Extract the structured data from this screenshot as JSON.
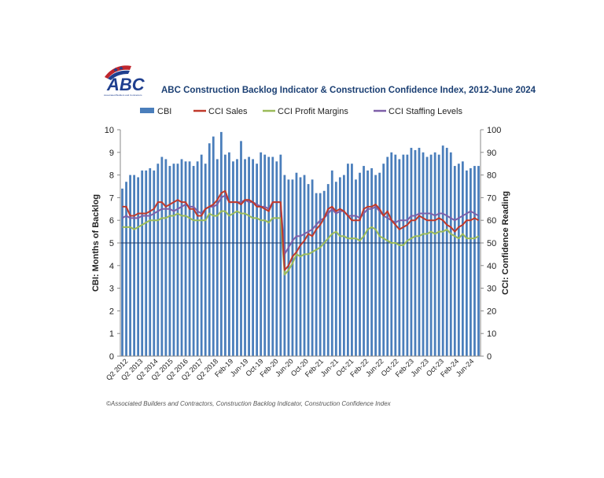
{
  "logo": {
    "text": "ABC",
    "subtext": "Associated Builders and Contractors",
    "icon": "abc-logo-flag"
  },
  "title": "ABC Construction Backlog Indicator & Construction Confidence Index, 2012-June 2024",
  "footer": "©Associated Builders and Contractors, Construction Backlog Indicator, Construction Confidence Index",
  "colors": {
    "cbi": "#4a7ebb",
    "sales": "#c0392b",
    "profit": "#9bbb59",
    "staffing": "#7e5fa8"
  },
  "chart_data": {
    "type": "bar",
    "x_tick_labels": [
      "Q2 2012",
      "Q2 2013",
      "Q2 2014",
      "Q2 2015",
      "Q2 2016",
      "Q2 2017",
      "Q2 2018",
      "Feb-19",
      "Jun-19",
      "Oct-19",
      "Feb-20",
      "Jun-20",
      "Oct-20",
      "Feb-21",
      "Jun-21",
      "Oct-21",
      "Feb-22",
      "Jun-22",
      "Oct-22",
      "Feb-23",
      "Jun-23",
      "Oct-23",
      "Feb-24",
      "Jun-24"
    ],
    "ylabel": "CBI: Months of Backlog",
    "y2label": "CCI: Confidence Reading",
    "ylim": [
      0,
      10
    ],
    "y2lim": [
      0,
      100
    ],
    "y_ticks": [
      "0",
      "1",
      "2",
      "3",
      "4",
      "5",
      "6",
      "7",
      "8",
      "9",
      "10"
    ],
    "y2_ticks": [
      "0",
      "10",
      "20",
      "30",
      "40",
      "50",
      "60",
      "70",
      "80",
      "90",
      "100"
    ],
    "reference_line_y2": 50,
    "series": [
      {
        "name": "CBI",
        "kind": "bar",
        "axis": "left",
        "values": [
          7.4,
          7.7,
          8.0,
          8.0,
          7.9,
          8.2,
          8.2,
          8.3,
          8.2,
          8.5,
          8.8,
          8.7,
          8.4,
          8.5,
          8.5,
          8.7,
          8.6,
          8.6,
          8.4,
          8.6,
          8.9,
          8.5,
          9.4,
          9.7,
          8.7,
          9.9,
          8.9,
          9.0,
          8.6,
          8.7,
          9.5,
          8.7,
          8.8,
          8.7,
          8.5,
          9.0,
          8.9,
          8.8,
          8.8,
          8.6,
          8.9,
          8.0,
          7.8,
          7.8,
          8.1,
          7.9,
          8.0,
          7.6,
          7.8,
          7.2,
          7.2,
          7.3,
          7.6,
          8.2,
          7.7,
          7.9,
          8.0,
          8.5,
          8.5,
          7.8,
          8.1,
          8.4,
          8.2,
          8.3,
          8.0,
          8.1,
          8.5,
          8.8,
          9.0,
          8.9,
          8.7,
          8.9,
          8.9,
          9.2,
          9.1,
          9.2,
          9.0,
          8.8,
          8.9,
          9.0,
          8.9,
          9.3,
          9.2,
          9.0,
          8.4,
          8.5,
          8.6,
          8.2,
          8.3,
          8.4,
          8.4
        ]
      },
      {
        "name": "CCI Sales",
        "kind": "line",
        "axis": "right",
        "values": [
          66,
          66,
          62,
          62,
          63,
          63,
          63,
          64,
          65,
          68,
          68,
          66,
          67,
          68,
          69,
          68,
          68,
          65,
          65,
          62,
          62,
          65,
          66,
          67,
          69,
          72,
          73,
          68,
          68,
          68,
          67,
          69,
          69,
          68,
          66,
          66,
          65,
          64,
          68,
          68,
          68,
          38,
          40,
          44,
          46,
          49,
          51,
          54,
          53,
          56,
          58,
          61,
          65,
          66,
          64,
          65,
          64,
          62,
          60,
          60,
          60,
          65,
          66,
          66,
          67,
          65,
          62,
          64,
          60,
          58,
          56,
          57,
          58,
          60,
          60,
          62,
          61,
          60,
          60,
          60,
          61,
          60,
          58,
          57,
          55,
          57,
          58,
          60,
          60,
          61,
          60
        ]
      },
      {
        "name": "CCI Profit Margins",
        "kind": "line",
        "axis": "right",
        "values": [
          57,
          57,
          57,
          56,
          57,
          58,
          59,
          60,
          60,
          60,
          61,
          61,
          62,
          62,
          63,
          62,
          62,
          61,
          60,
          60,
          60,
          60,
          63,
          62,
          62,
          64,
          64,
          62,
          63,
          64,
          63,
          63,
          62,
          61,
          61,
          60,
          60,
          59,
          61,
          61,
          61,
          36,
          38,
          41,
          45,
          44,
          45,
          45,
          46,
          47,
          48,
          50,
          52,
          54,
          55,
          53,
          53,
          52,
          52,
          52,
          51,
          53,
          56,
          57,
          56,
          53,
          52,
          51,
          50,
          50,
          49,
          49,
          51,
          52,
          53,
          53,
          54,
          54,
          55,
          54,
          55,
          55,
          56,
          54,
          53,
          52,
          54,
          52,
          52,
          52,
          53
        ]
      },
      {
        "name": "CCI Staffing Levels",
        "kind": "line",
        "axis": "right",
        "values": [
          61,
          62,
          61,
          61,
          61,
          62,
          62,
          62,
          63,
          64,
          65,
          65,
          65,
          64,
          65,
          66,
          67,
          66,
          66,
          64,
          63,
          65,
          66,
          66,
          67,
          70,
          71,
          68,
          68,
          68,
          68,
          69,
          68,
          68,
          67,
          66,
          66,
          65,
          68,
          68,
          68,
          45,
          48,
          51,
          53,
          53,
          54,
          55,
          56,
          58,
          60,
          61,
          63,
          65,
          63,
          64,
          64,
          62,
          62,
          62,
          61,
          63,
          65,
          65,
          66,
          64,
          62,
          61,
          60,
          59,
          60,
          60,
          60,
          62,
          62,
          63,
          63,
          63,
          63,
          62,
          63,
          63,
          62,
          61,
          60,
          61,
          62,
          63,
          64,
          63,
          62
        ]
      }
    ]
  }
}
